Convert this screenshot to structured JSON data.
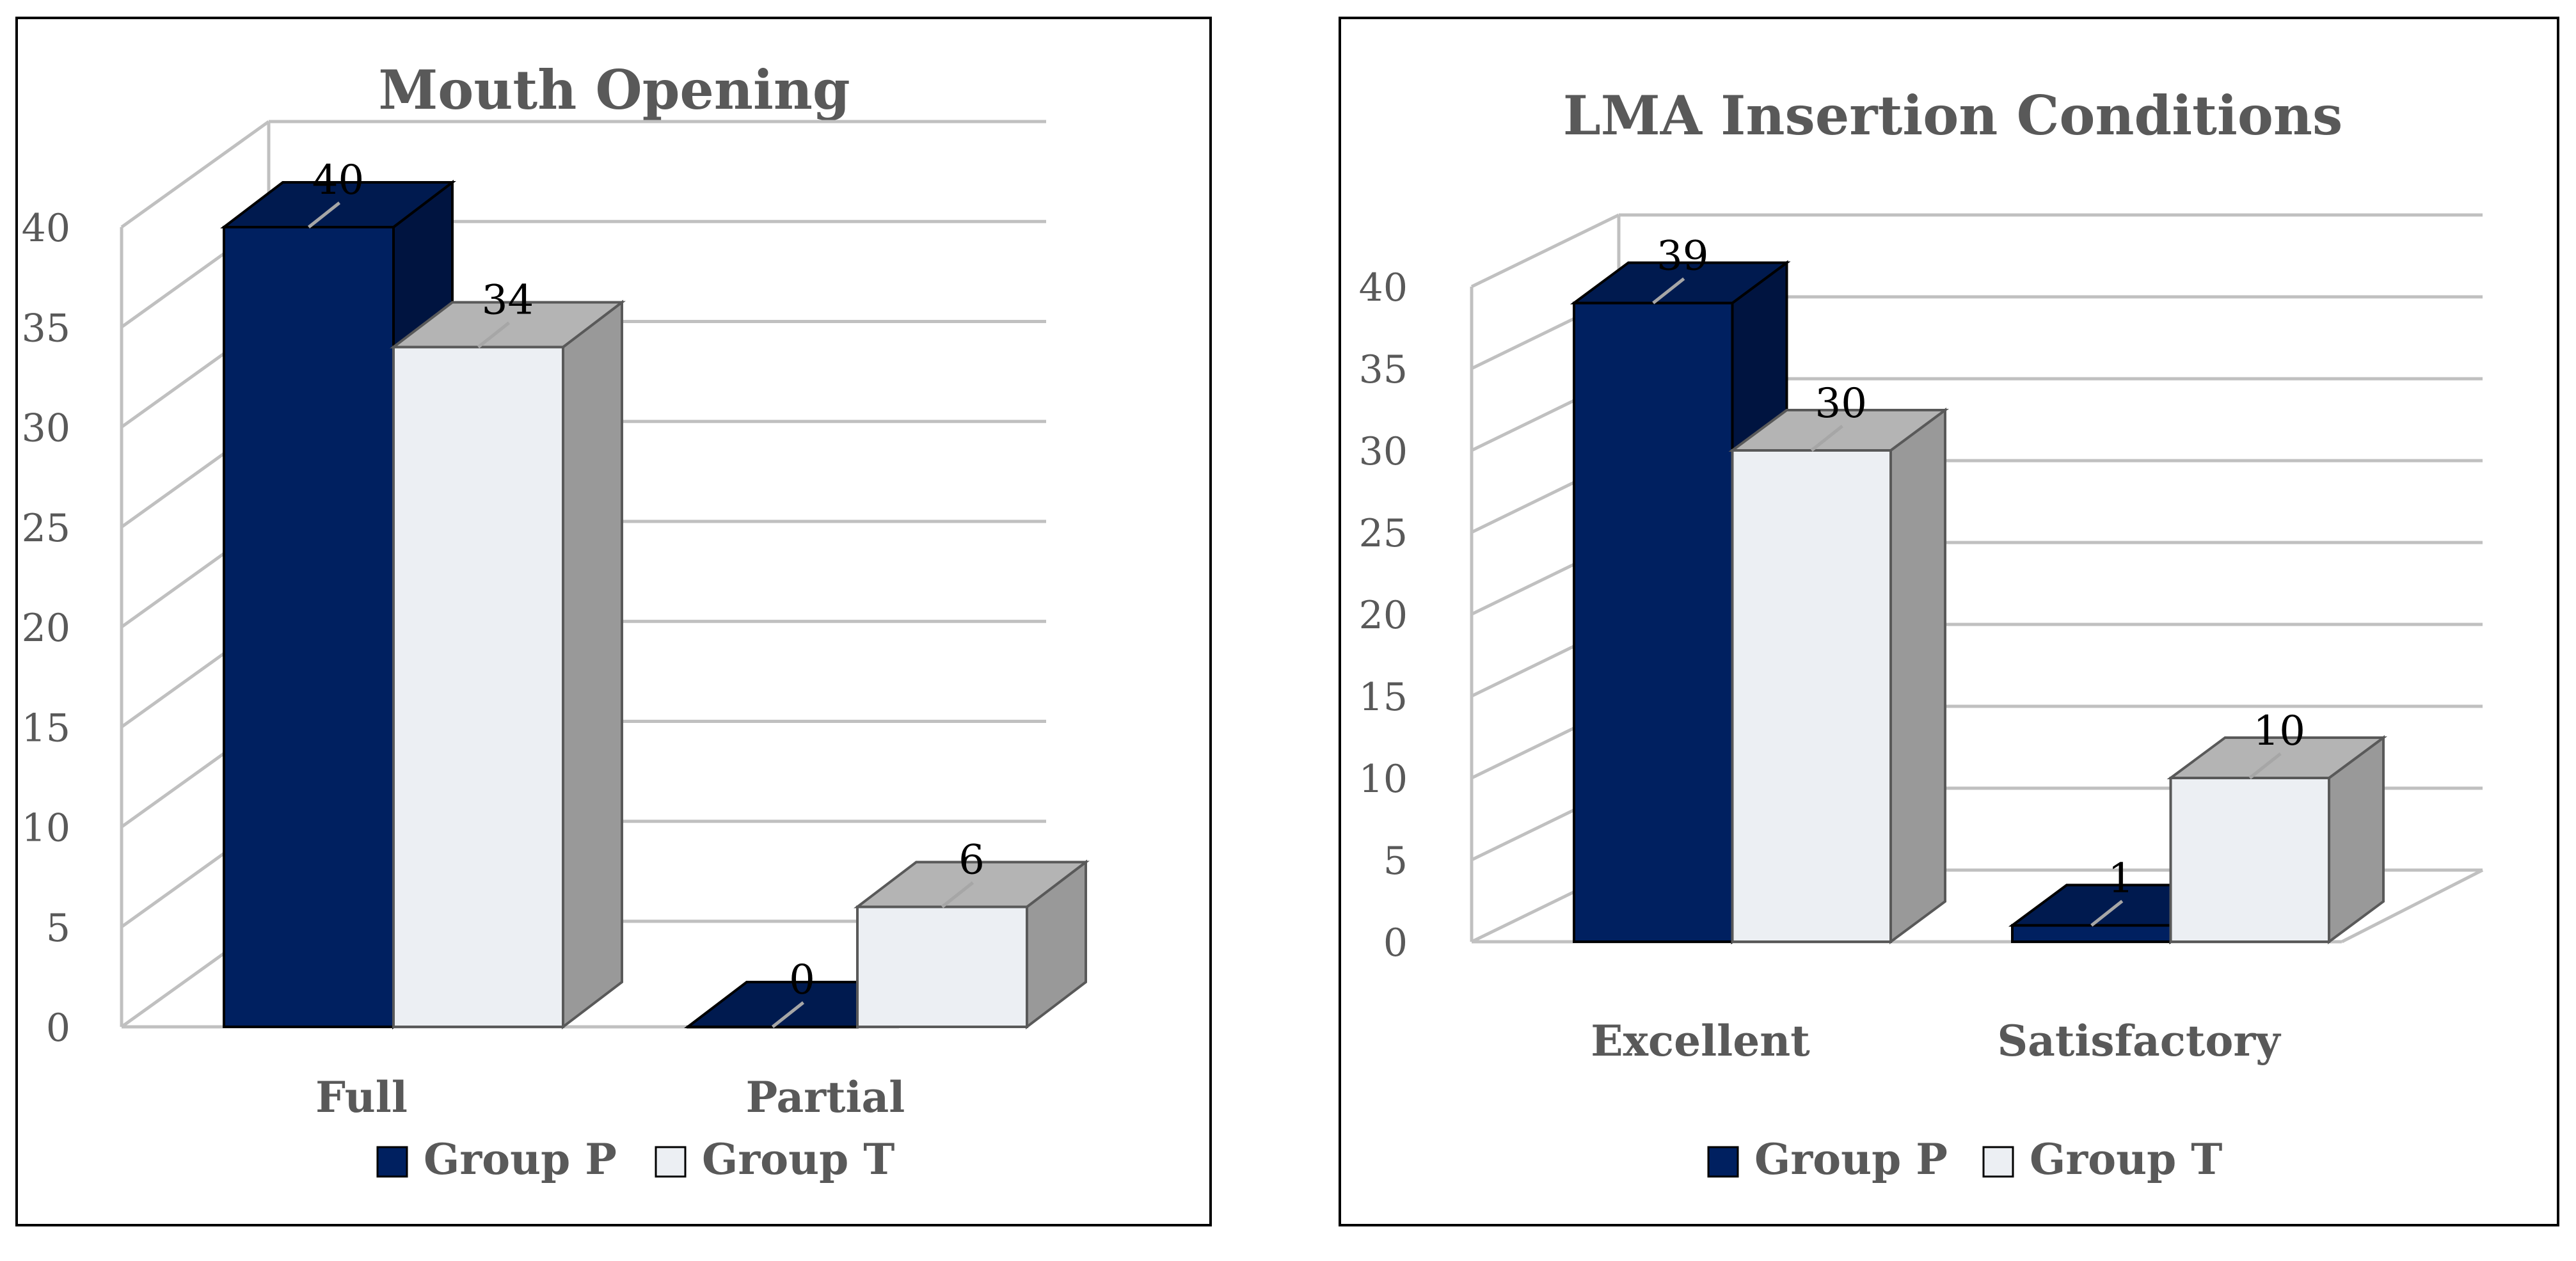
{
  "colors": {
    "group_p_front": "#002060",
    "group_p_top": "#001a4f",
    "group_p_side": "#001440",
    "group_t_front": "#eceff3",
    "group_t_top": "#b4b4b4",
    "group_t_side": "#999999",
    "grid": "#c0c0c0",
    "frame": "#000000"
  },
  "chart_data": [
    {
      "type": "bar",
      "title": "Mouth Opening",
      "categories": [
        "Full",
        "Partial"
      ],
      "series": [
        {
          "name": "Group P",
          "values": [
            40,
            0
          ]
        },
        {
          "name": "Group T",
          "values": [
            34,
            6
          ]
        }
      ],
      "ylim": [
        0,
        40
      ],
      "yticks": [
        "0",
        "5",
        "10",
        "15",
        "20",
        "25",
        "30",
        "35",
        "40"
      ],
      "data_labels": [
        [
          "40",
          "0"
        ],
        [
          "34",
          "6"
        ]
      ],
      "grid": true,
      "legend": "bottom"
    },
    {
      "type": "bar",
      "title": "LMA Insertion Conditions",
      "categories": [
        "Excellent",
        "Satisfactory"
      ],
      "series": [
        {
          "name": "Group P",
          "values": [
            39,
            1
          ]
        },
        {
          "name": "Group T",
          "values": [
            30,
            10
          ]
        }
      ],
      "ylim": [
        0,
        40
      ],
      "yticks": [
        "0",
        "5",
        "10",
        "15",
        "20",
        "25",
        "30",
        "35",
        "40"
      ],
      "data_labels": [
        [
          "39",
          "1"
        ],
        [
          "30",
          "10"
        ]
      ],
      "grid": true,
      "legend": "bottom"
    }
  ]
}
